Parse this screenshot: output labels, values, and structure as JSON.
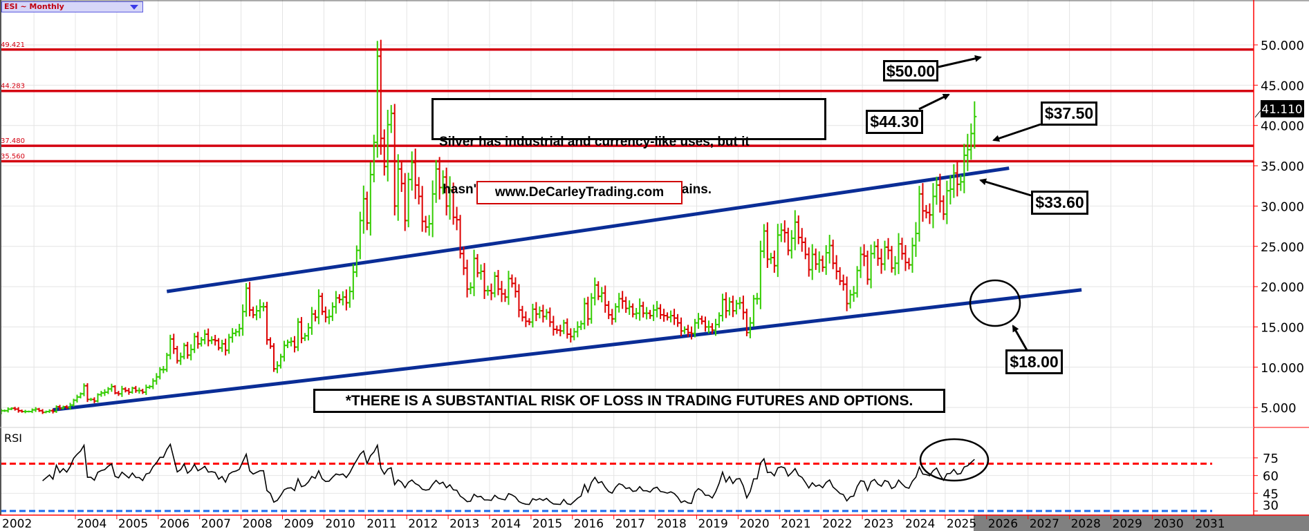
{
  "header": {
    "symbol_selector": "ESI ~ Monthly"
  },
  "colors": {
    "up_bar": "#33cc00",
    "down_bar": "#dd0000",
    "level_line": "#d40010",
    "trendline": "#0a2d96",
    "axis": "#ff0000",
    "rsi_overbought": "#ff0000",
    "rsi_oversold": "#1a6aee",
    "future_band": "#808080"
  },
  "annotations": {
    "target_50": "$50.00",
    "target_44": "$44.30",
    "target_37": "$37.50",
    "support_33": "$33.60",
    "support_18": "$18.00",
    "comment_line1": "Silver has industrial and currency-like uses, but it",
    "comment_line2": " hasn't been the type of asset to hold gains.",
    "website": "www.DeCarleyTrading.com",
    "disclaimer": "*THERE IS A SUBSTANTIAL RISK OF LOSS IN TRADING FUTURES AND OPTIONS."
  },
  "chart_data": [
    {
      "type": "ohlc-bar",
      "title": "ESI ~ Monthly",
      "last_price": "41.110",
      "y_ticks": [
        "5.000",
        "10.000",
        "15.000",
        "20.000",
        "25.000",
        "30.000",
        "35.000",
        "40.000",
        "45.000",
        "50.000"
      ],
      "ylim": [
        4.5,
        55
      ],
      "x_ticks": [
        "2002",
        "2004",
        "2005",
        "2006",
        "2007",
        "2008",
        "2009",
        "2010",
        "2011",
        "2012",
        "2013",
        "2014",
        "2015",
        "2016",
        "2017",
        "2018",
        "2019",
        "2020",
        "2021",
        "2022",
        "2023",
        "2024",
        "2025",
        "2026",
        "2027",
        "2028",
        "2029",
        "2030",
        "2031"
      ],
      "grid": true,
      "horizontal_levels": [
        {
          "value": 49.421,
          "label": "49.421"
        },
        {
          "value": 44.283,
          "label": "44.283"
        },
        {
          "value": 37.48,
          "label": "37.480"
        },
        {
          "value": 35.56,
          "label": "35.560"
        }
      ],
      "trendlines": [
        {
          "from": [
            "2006-03",
            19.4
          ],
          "to": [
            "2026-07",
            34.7
          ]
        },
        {
          "from": [
            "2003-06",
            4.7
          ],
          "to": [
            "2028-04",
            19.6
          ]
        }
      ],
      "circled_point": [
        "2026-03",
        18.0
      ],
      "monthly_close": {
        "2002": [
          4.2,
          4.4,
          4.6,
          4.6,
          4.8,
          4.9,
          4.8,
          4.6,
          4.5,
          4.5,
          4.5,
          4.7
        ],
        "2003": [
          4.8,
          4.6,
          4.4,
          4.5,
          4.6,
          4.5,
          5.1,
          4.9,
          5.1,
          5.0,
          5.3,
          5.9
        ],
        "2004": [
          6.3,
          6.7,
          7.7,
          6.0,
          6.0,
          5.8,
          6.6,
          6.8,
          6.9,
          7.3,
          7.6,
          6.8
        ],
        "2005": [
          6.7,
          7.3,
          7.1,
          6.9,
          7.4,
          7.1,
          7.1,
          6.9,
          7.5,
          7.6,
          8.3,
          8.8
        ],
        "2006": [
          9.7,
          9.7,
          11.5,
          13.5,
          12.3,
          10.8,
          11.3,
          12.7,
          11.5,
          12.2,
          13.8,
          12.9
        ],
        "2007": [
          13.4,
          14.1,
          13.3,
          13.4,
          13.3,
          12.4,
          12.9,
          12.1,
          13.7,
          14.2,
          14.4,
          14.8
        ],
        "2008": [
          16.9,
          19.8,
          17.1,
          16.5,
          17.0,
          17.5,
          17.5,
          13.4,
          12.6,
          9.8,
          10.2,
          11.3
        ],
        "2009": [
          12.7,
          13.1,
          13.2,
          12.5,
          15.6,
          13.6,
          13.9,
          14.9,
          16.6,
          16.2,
          18.8,
          16.9
        ],
        "2010": [
          16.2,
          16.3,
          17.5,
          18.6,
          18.4,
          18.7,
          18.0,
          19.4,
          21.8,
          24.5,
          28.2,
          30.9
        ],
        "2011": [
          27.9,
          33.9,
          37.9,
          48.6,
          38.4,
          34.9,
          40.1,
          41.5,
          30.0,
          34.6,
          32.8,
          28.2
        ],
        "2012": [
          33.3,
          35.4,
          32.6,
          31.2,
          28.1,
          27.4,
          27.8,
          31.5,
          34.6,
          32.3,
          33.6,
          30.0
        ],
        "2013": [
          32.0,
          28.6,
          28.3,
          24.1,
          22.3,
          19.7,
          19.9,
          23.5,
          21.7,
          21.9,
          19.5,
          19.5
        ],
        "2014": [
          19.2,
          21.3,
          19.7,
          19.1,
          18.7,
          21.0,
          20.4,
          19.4,
          17.1,
          16.2,
          15.7,
          15.6
        ],
        "2015": [
          17.2,
          16.6,
          17.0,
          16.3,
          16.8,
          15.6,
          14.7,
          14.6,
          14.5,
          15.5,
          14.1,
          13.8
        ],
        "2016": [
          14.4,
          15.0,
          15.4,
          17.9,
          16.0,
          18.6,
          20.2,
          18.8,
          19.2,
          17.7,
          16.5,
          16.0
        ],
        "2017": [
          17.5,
          18.5,
          18.2,
          17.3,
          17.5,
          16.6,
          16.7,
          17.6,
          16.7,
          16.7,
          16.4,
          17.1
        ],
        "2018": [
          17.3,
          16.5,
          16.4,
          16.2,
          16.4,
          16.1,
          15.5,
          14.5,
          14.7,
          14.3,
          14.2,
          15.5
        ],
        "2019": [
          16.0,
          15.7,
          15.0,
          15.0,
          14.6,
          15.3,
          16.4,
          18.4,
          17.0,
          18.1,
          17.0,
          17.9
        ],
        "2020": [
          18.0,
          16.8,
          14.3,
          15.5,
          18.5,
          18.5,
          24.4,
          26.9,
          23.4,
          23.6,
          22.6,
          26.4
        ],
        "2021": [
          27.0,
          26.7,
          24.5,
          26.0,
          28.0,
          26.1,
          25.5,
          24.0,
          22.1,
          24.0,
          22.8,
          23.3
        ],
        "2022": [
          22.4,
          24.2,
          25.1,
          22.9,
          21.9,
          20.7,
          20.3,
          17.9,
          19.0,
          19.2,
          22.0,
          24.0
        ],
        "2023": [
          23.8,
          20.9,
          24.1,
          25.0,
          23.5,
          22.8,
          24.9,
          24.5,
          22.3,
          22.9,
          25.3,
          24.1
        ],
        "2024": [
          23.0,
          22.7,
          25.1,
          26.6,
          31.5,
          29.4,
          29.2,
          28.9,
          31.2,
          32.6,
          30.6,
          29.0
        ],
        "2025": [
          31.9,
          32.1,
          34.1,
          32.7,
          33.0,
          36.3,
          37.0,
          39.0,
          41.1
        ]
      }
    },
    {
      "type": "line",
      "title": "RSI",
      "period": 14,
      "y_ticks": [
        "30",
        "45",
        "60",
        "75"
      ],
      "ylim": [
        27,
        90
      ],
      "overbought": 70,
      "oversold": 30,
      "circled_point": [
        "2025-05",
        65
      ]
    }
  ]
}
